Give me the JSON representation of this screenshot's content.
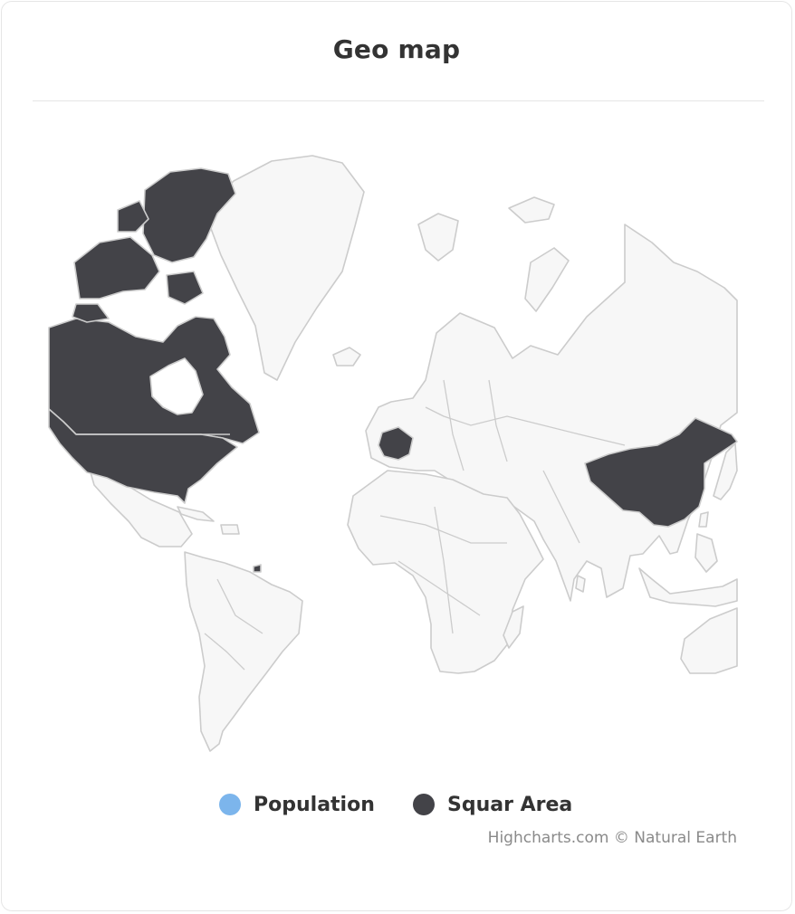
{
  "chart": {
    "title": "Geo map",
    "credits": "Highcharts.com © Natural Earth"
  },
  "colors": {
    "land": "#f7f7f7",
    "border": "#cccccc",
    "highlight": "#434348",
    "population": "#7cb5ec"
  },
  "legend": {
    "items": [
      {
        "label": "Population",
        "color": "#7cb5ec"
      },
      {
        "label": "Squar Area",
        "color": "#434348"
      }
    ]
  },
  "map_data": {
    "highlighted_countries": [
      "Canada",
      "United States",
      "France",
      "China",
      "Trinidad and Tobago"
    ]
  }
}
